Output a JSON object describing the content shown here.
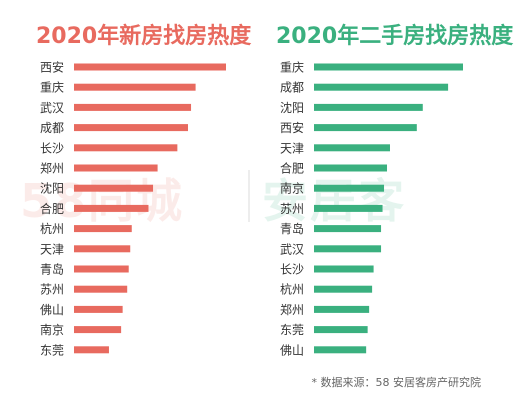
{
  "colors": {
    "left_accent": "#e86a5f",
    "right_accent": "#3ab07f",
    "label_text": "#333333"
  },
  "source_note": "* 数据来源：58 安居客房产研究院",
  "watermark": {
    "left": "58同城",
    "right": "安居客"
  },
  "chart_data": [
    {
      "type": "bar",
      "orientation": "horizontal",
      "title": "2020年新房找房热度",
      "categories": [
        "西安",
        "重庆",
        "武汉",
        "成都",
        "长沙",
        "郑州",
        "沈阳",
        "合肥",
        "杭州",
        "天津",
        "青岛",
        "苏州",
        "佛山",
        "南京",
        "东莞"
      ],
      "values": [
        100,
        80,
        77,
        75,
        68,
        55,
        52,
        49,
        38,
        37,
        36,
        35,
        32,
        31,
        23
      ],
      "ylim": [
        0,
        100
      ],
      "grid": false,
      "legend": "none"
    },
    {
      "type": "bar",
      "orientation": "horizontal",
      "title": "2020年二手房找房热度",
      "categories": [
        "重庆",
        "成都",
        "沈阳",
        "西安",
        "天津",
        "合肥",
        "南京",
        "苏州",
        "青岛",
        "武汉",
        "长沙",
        "杭州",
        "郑州",
        "东莞",
        "佛山"
      ],
      "values": [
        100,
        90,
        73,
        69,
        51,
        49,
        47,
        46,
        45,
        45,
        40,
        39,
        37,
        36,
        35
      ],
      "ylim": [
        0,
        100
      ],
      "grid": false,
      "legend": "none"
    }
  ]
}
